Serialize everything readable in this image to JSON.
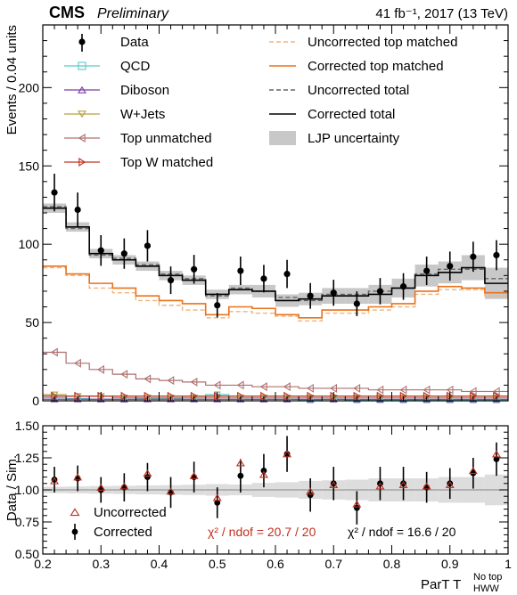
{
  "header": {
    "cms": "CMS",
    "preliminary": "Preliminary",
    "lumi": "41 fb⁻¹, 2017 (13 TeV)"
  },
  "axes": {
    "ylabel_top": "Events / 0.04 units",
    "ylabel_bottom": "Data / Sim.",
    "xlabel": "ParT T",
    "xlabel_sub": "HWW",
    "xlabel_sup": "No top"
  },
  "legend": {
    "data": "Data",
    "qcd": "QCD",
    "diboson": "Diboson",
    "wjets": "W+Jets",
    "top_unmatched": "Top unmatched",
    "top_w_matched": "Top W matched",
    "uncorr_top_matched": "Uncorrected top matched",
    "corr_top_matched": "Corrected top matched",
    "uncorr_total": "Uncorrected total",
    "corr_total": "Corrected total",
    "ljp_unc": "LJP uncertainty",
    "ratio_uncorrected": "Uncorrected",
    "ratio_corrected": "Corrected"
  },
  "chi2": {
    "uncorrected": "χ² / ndof = 20.7 / 20",
    "corrected": "χ² / ndof = 16.6 / 20"
  },
  "colors": {
    "qcd": "#5bc8c8",
    "diboson": "#7b3aa6",
    "wjets": "#b8a040",
    "top_unmatched": "#b07070",
    "top_w_matched": "#c03020",
    "uncorr_top_matched": "#f2b27a",
    "corr_top_matched": "#e8731c",
    "uncorr_total": "#666666",
    "corr_total": "#000000",
    "ljp_unc": "#c8c8c8",
    "ratio_uncorrected": "#c03020"
  },
  "chart_data": [
    {
      "type": "bar",
      "panel": "main",
      "x_edges": [
        0.2,
        0.24,
        0.28,
        0.32,
        0.36,
        0.4,
        0.44,
        0.48,
        0.52,
        0.56,
        0.6,
        0.64,
        0.68,
        0.72,
        0.76,
        0.8,
        0.84,
        0.88,
        0.92,
        0.96,
        1.0
      ],
      "xlim": [
        0.2,
        1.0
      ],
      "ylim": [
        0,
        240
      ],
      "yticks": [
        0,
        50,
        100,
        150,
        200
      ],
      "series": [
        {
          "name": "Data",
          "key": "data",
          "values": [
            133,
            122,
            96,
            94,
            99,
            77,
            84,
            61,
            83,
            78,
            81,
            67,
            69,
            62,
            70,
            73,
            83,
            86,
            92,
            93
          ],
          "errors": [
            12,
            11,
            9.8,
            9.7,
            10,
            8.8,
            9.2,
            7.8,
            9.1,
            8.8,
            9.0,
            8.2,
            8.3,
            7.9,
            8.4,
            8.5,
            9.1,
            9.3,
            9.6,
            9.6
          ]
        },
        {
          "name": "QCD",
          "key": "qcd",
          "values": [
            2,
            1.5,
            1,
            1,
            1.5,
            1.5,
            2,
            4,
            1,
            1,
            1,
            0.5,
            1,
            0.5,
            0.5,
            0.5,
            0.5,
            0.5,
            0.5,
            0.5
          ]
        },
        {
          "name": "Diboson",
          "key": "diboson",
          "values": [
            1,
            1,
            1,
            1,
            1,
            1,
            1,
            1,
            1,
            1,
            1,
            1,
            1,
            1,
            1,
            1,
            1,
            1,
            1,
            1
          ]
        },
        {
          "name": "W+Jets",
          "key": "wjets",
          "values": [
            4,
            3,
            3,
            2,
            2,
            2,
            2,
            2,
            2,
            2,
            2,
            2,
            2,
            2,
            2,
            2,
            2,
            2,
            2,
            2
          ]
        },
        {
          "name": "Top unmatched",
          "key": "top_unmatched",
          "values": [
            31,
            24,
            20,
            17,
            14,
            13,
            12,
            10,
            10,
            9,
            9,
            8,
            8,
            8,
            7,
            7,
            7,
            7,
            6,
            6
          ]
        },
        {
          "name": "Top W matched",
          "key": "top_w_matched",
          "values": [
            3,
            3,
            3,
            3,
            3,
            3,
            3,
            3,
            3,
            3,
            3,
            3,
            3,
            3,
            3,
            3,
            3,
            3,
            3,
            3
          ]
        },
        {
          "name": "Uncorrected top matched",
          "key": "uncorr_top_matched",
          "values": [
            85,
            80,
            72,
            69,
            64,
            61,
            58,
            53,
            57,
            56,
            54,
            51,
            56,
            56,
            58,
            60,
            68,
            71,
            71,
            67
          ]
        },
        {
          "name": "Corrected top matched",
          "key": "corr_top_matched",
          "values": [
            86,
            81,
            75,
            72,
            67,
            64,
            62,
            55,
            60,
            59,
            55,
            53,
            58,
            58,
            60,
            62,
            70,
            73,
            72,
            69
          ]
        },
        {
          "name": "Uncorrected total",
          "key": "uncorr_total",
          "values": [
            124,
            110,
            93,
            91,
            87,
            81,
            78,
            67,
            72,
            70,
            66,
            64,
            68,
            68,
            70,
            72,
            81,
            84,
            84,
            78
          ]
        },
        {
          "name": "Corrected total",
          "key": "corr_total",
          "values": [
            123,
            111,
            94,
            90,
            86,
            80,
            77,
            68,
            71,
            70,
            64,
            65,
            67,
            67,
            68,
            72,
            80,
            82,
            85,
            75
          ]
        },
        {
          "name": "LJP uncertainty",
          "key": "ljp_unc",
          "values": [
            3,
            3,
            3,
            3,
            3,
            3,
            3,
            3,
            3,
            4,
            4,
            4,
            5,
            5,
            6,
            6,
            7,
            7,
            8,
            10
          ]
        }
      ]
    },
    {
      "type": "scatter",
      "panel": "ratio",
      "x_edges": [
        0.2,
        0.24,
        0.28,
        0.32,
        0.36,
        0.4,
        0.44,
        0.48,
        0.52,
        0.56,
        0.6,
        0.64,
        0.68,
        0.72,
        0.76,
        0.8,
        0.84,
        0.88,
        0.92,
        0.96,
        1.0
      ],
      "xlim": [
        0.2,
        1.0
      ],
      "ylim": [
        0.5,
        1.5
      ],
      "xticks": [
        0.2,
        0.3,
        0.4,
        0.5,
        0.6,
        0.7,
        0.8,
        0.9,
        1.0
      ],
      "yticks": [
        0.5,
        0.75,
        1.0,
        1.25,
        1.5
      ],
      "series": [
        {
          "name": "Uncorrected",
          "key": "ratio_uncorrected",
          "values": [
            1.07,
            1.1,
            1.02,
            1.03,
            1.13,
            0.99,
            1.11,
            0.94,
            1.21,
            1.12,
            1.28,
            0.99,
            1.04,
            0.89,
            1.03,
            1.04,
            1.03,
            1.04,
            1.15,
            1.28
          ]
        },
        {
          "name": "Corrected",
          "key": "ratio_corrected",
          "values": [
            1.08,
            1.09,
            1.0,
            1.02,
            1.1,
            0.98,
            1.1,
            0.9,
            1.11,
            1.15,
            1.28,
            0.96,
            1.05,
            0.86,
            1.05,
            1.05,
            1.02,
            1.05,
            1.13,
            1.24
          ],
          "errors": [
            0.1,
            0.1,
            0.1,
            0.11,
            0.11,
            0.12,
            0.12,
            0.12,
            0.13,
            0.13,
            0.14,
            0.13,
            0.13,
            0.13,
            0.13,
            0.13,
            0.12,
            0.12,
            0.12,
            0.13
          ]
        },
        {
          "name": "LJP uncertainty",
          "key": "ljp_unc",
          "values": [
            0.025,
            0.027,
            0.03,
            0.032,
            0.035,
            0.037,
            0.04,
            0.045,
            0.042,
            0.055,
            0.06,
            0.07,
            0.075,
            0.08,
            0.09,
            0.09,
            0.09,
            0.1,
            0.1,
            0.12
          ]
        }
      ]
    }
  ]
}
